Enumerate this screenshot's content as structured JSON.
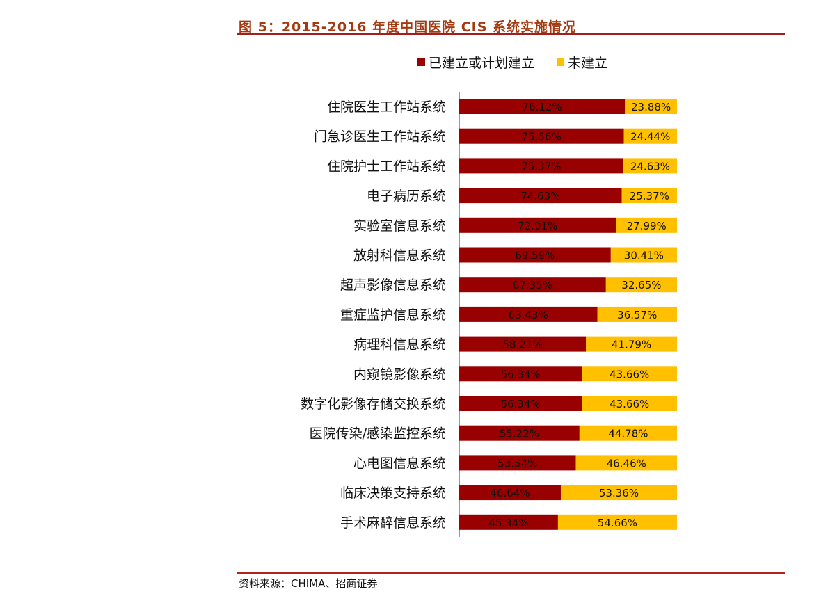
{
  "chart_data": {
    "type": "bar",
    "orientation": "horizontal-stacked-100",
    "title": "图 5：2015-2016 年度中国医院 CIS 系统实施情况",
    "source": "资料来源：CHIMA、招商证券",
    "legend": {
      "placement": "top",
      "entries": [
        "已建立或计划建立",
        "未建立"
      ]
    },
    "colors": {
      "built": "#990000",
      "not_built": "#FFC000",
      "title": "#a33a12"
    },
    "categories": [
      "住院医生工作站系统",
      "门急诊医生工作站系统",
      "住院护士工作站系统",
      "电子病历系统",
      "实验室信息系统",
      "放射科信息系统",
      "超声影像信息系统",
      "重症监护信息系统",
      "病理科信息系统",
      "内窥镜影像系统",
      "数字化影像存储交换系统",
      "医院传染/感染监控系统",
      "心电图信息系统",
      "临床决策支持系统",
      "手术麻醉信息系统"
    ],
    "series": [
      {
        "name": "已建立或计划建立",
        "values": [
          76.12,
          75.56,
          75.37,
          74.63,
          72.01,
          69.59,
          67.35,
          63.43,
          58.21,
          56.34,
          56.34,
          55.22,
          53.54,
          46.64,
          45.34
        ],
        "labels": [
          "76.12%",
          "75.56%",
          "75.37%",
          "74.63%",
          "72.01%",
          "69.59%",
          "67.35%",
          "63.43%",
          "58.21%",
          "56.34%",
          "56.34%",
          "55.22%",
          "53.54%",
          "46.64%",
          "45.34%"
        ]
      },
      {
        "name": "未建立",
        "values": [
          23.88,
          24.44,
          24.63,
          25.37,
          27.99,
          30.41,
          32.65,
          36.57,
          41.79,
          43.66,
          43.66,
          44.78,
          46.46,
          53.36,
          54.66
        ],
        "labels": [
          "23.88%",
          "24.44%",
          "24.63%",
          "25.37%",
          "27.99%",
          "30.41%",
          "32.65%",
          "36.57%",
          "41.79%",
          "43.66%",
          "43.66%",
          "44.78%",
          "46.46%",
          "53.36%",
          "54.66%"
        ]
      }
    ],
    "xlim": [
      0,
      100
    ],
    "grid": false
  }
}
